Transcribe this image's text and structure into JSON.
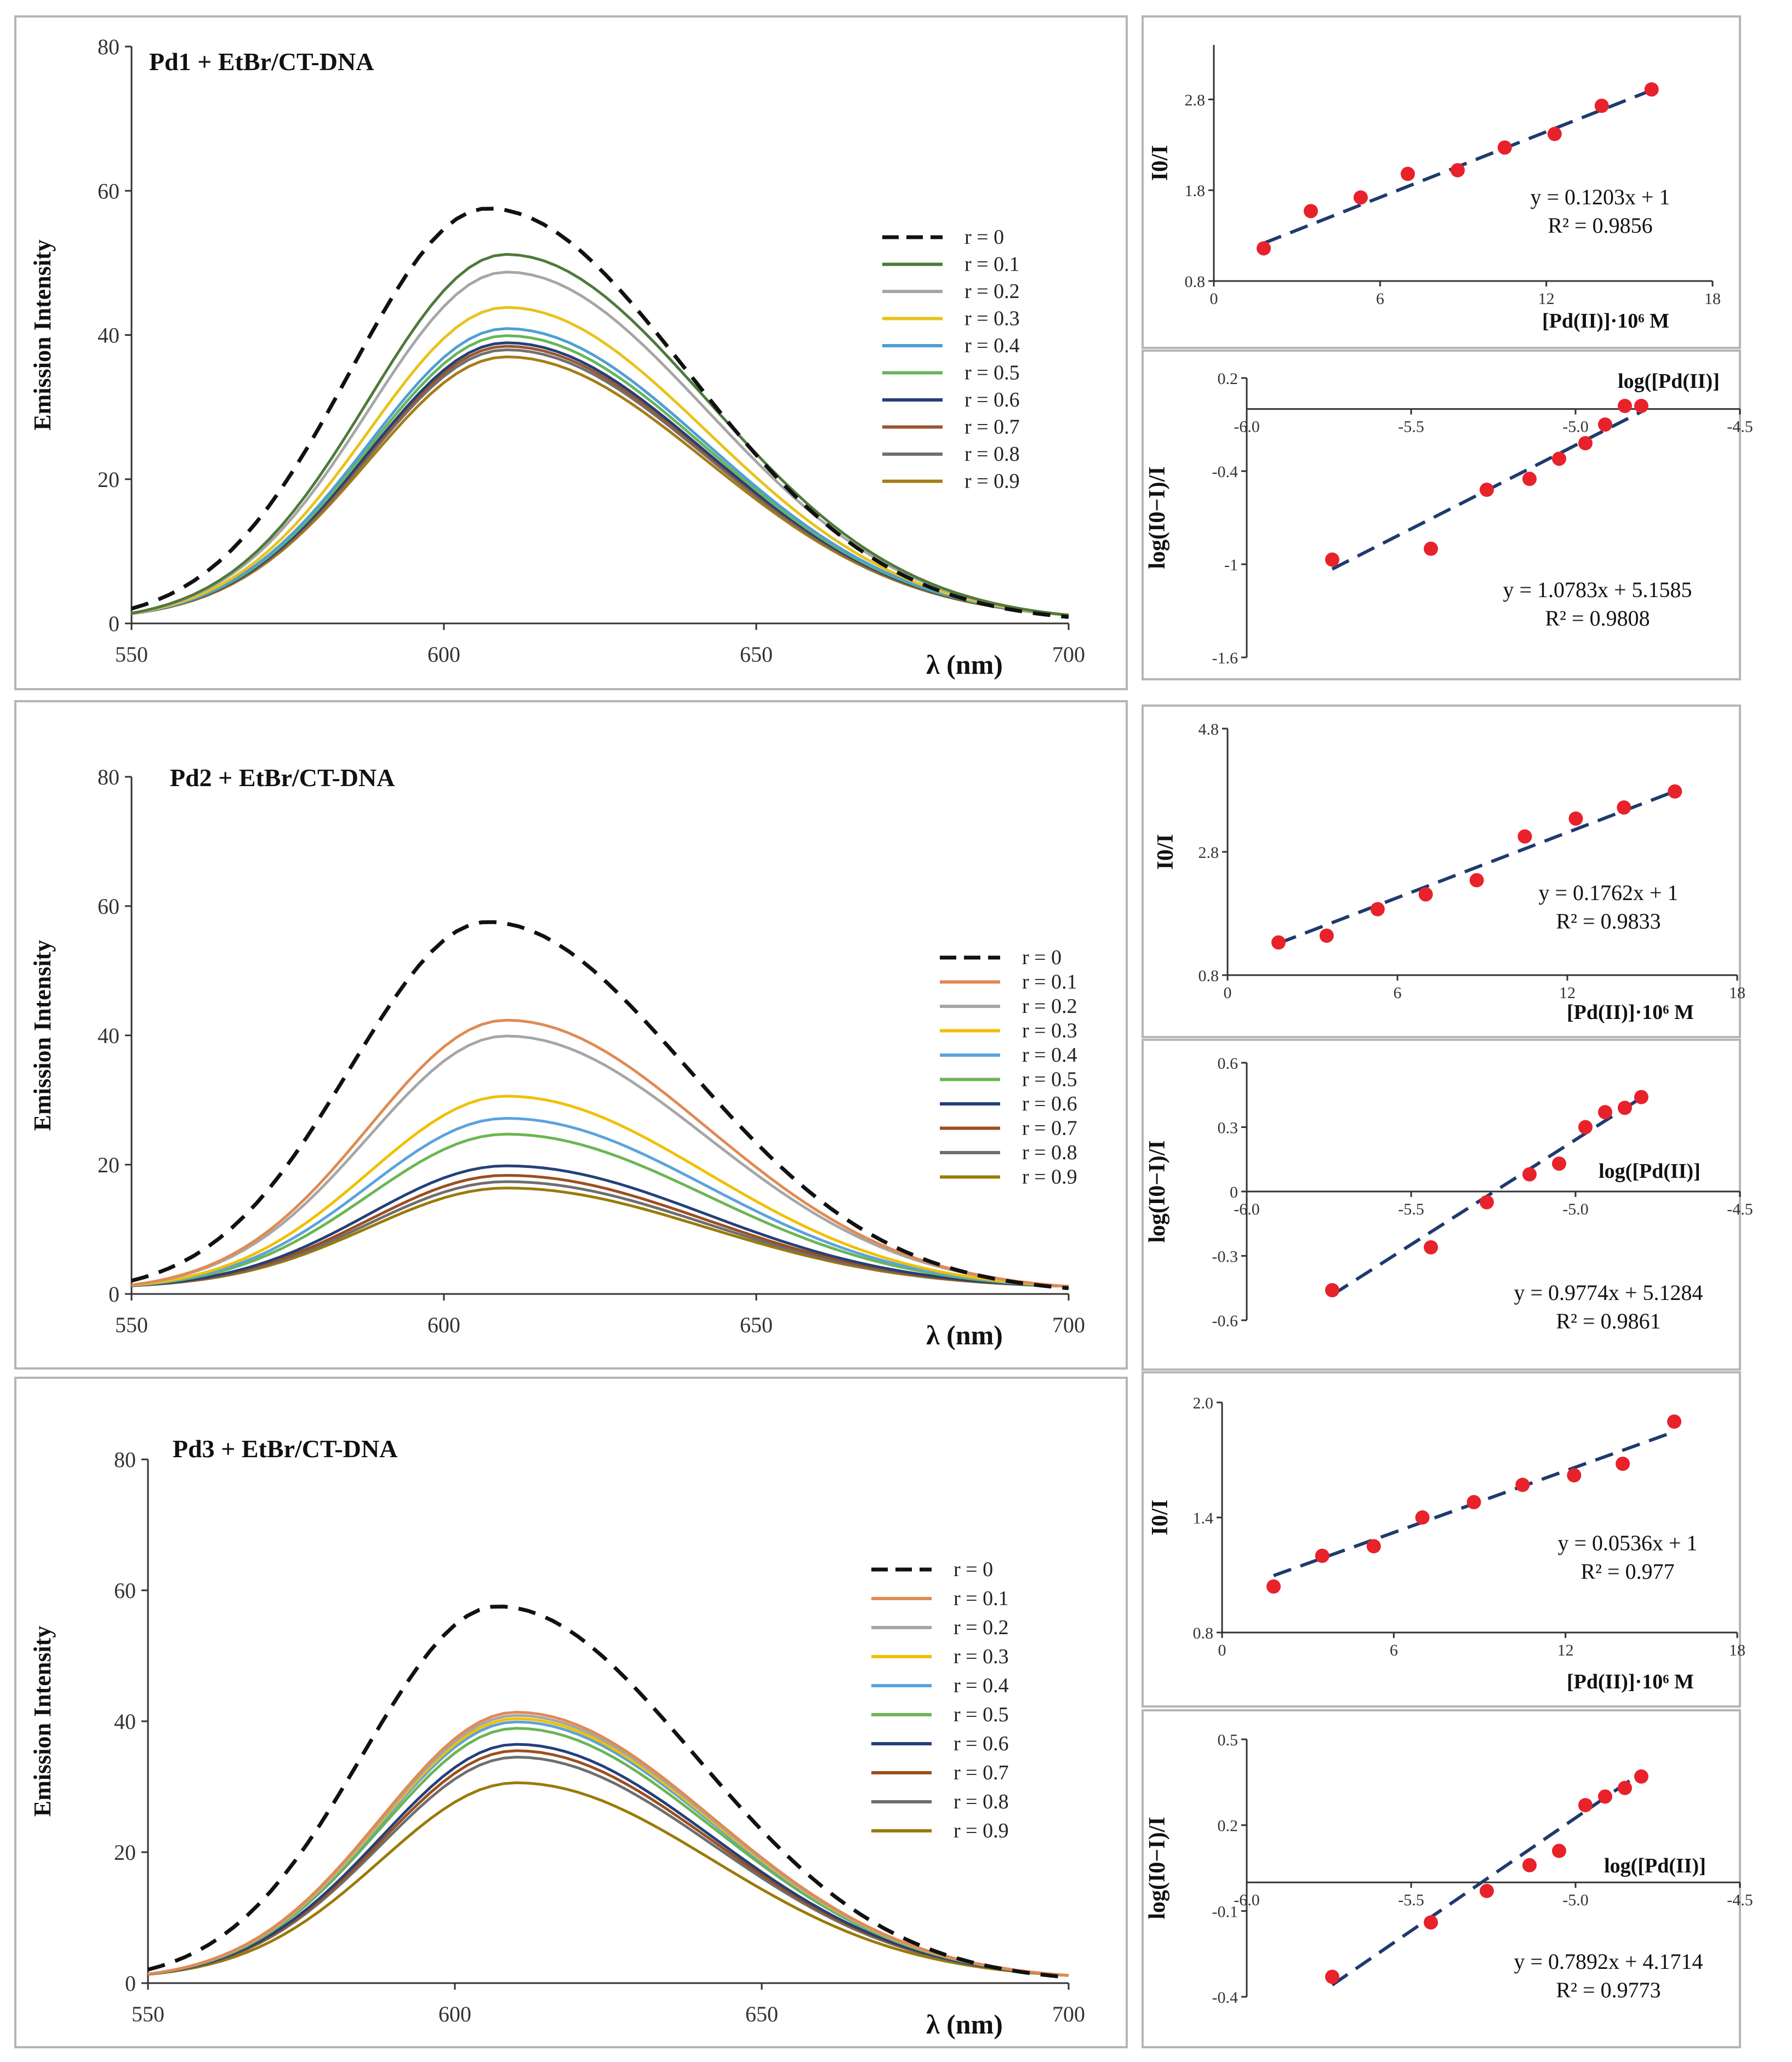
{
  "chart_data": [
    {
      "type": "line",
      "title": "Pd1 + EtBr/CT-DNA",
      "xlabel": "λ (nm)",
      "ylabel": "Emission Intensity",
      "xlim": [
        550,
        700
      ],
      "ylim": [
        0,
        80
      ],
      "xticks": [
        "550",
        "600",
        "650",
        "700"
      ],
      "yticks": [
        "0",
        "20",
        "40",
        "60",
        "80"
      ],
      "series": [
        {
          "name": "r = 0",
          "peak": 57.5,
          "dashed": true,
          "color": "#111111"
        },
        {
          "name": "r = 0.1",
          "peak": 51,
          "color": "#4e7a3a"
        },
        {
          "name": "r = 0.2",
          "peak": 48.5,
          "color": "#a6a6a6"
        },
        {
          "name": "r = 0.3",
          "peak": 43.5,
          "color": "#e9c21a"
        },
        {
          "name": "r = 0.4",
          "peak": 40.5,
          "color": "#4f9fd3"
        },
        {
          "name": "r = 0.5",
          "peak": 39.5,
          "color": "#69b45c"
        },
        {
          "name": "r = 0.6",
          "peak": 38.5,
          "color": "#24407a"
        },
        {
          "name": "r = 0.7",
          "peak": 38,
          "color": "#9c5530"
        },
        {
          "name": "r = 0.8",
          "peak": 37.5,
          "color": "#707070"
        },
        {
          "name": "r = 0.9",
          "peak": 36.5,
          "color": "#a67c17"
        }
      ]
    },
    {
      "type": "line",
      "title": "Pd2 + EtBr/CT-DNA",
      "xlabel": "λ (nm)",
      "ylabel": "Emission Intensity",
      "xlim": [
        550,
        700
      ],
      "ylim": [
        0,
        80
      ],
      "xticks": [
        "550",
        "600",
        "650",
        "700"
      ],
      "yticks": [
        "0",
        "20",
        "40",
        "60",
        "80"
      ],
      "series": [
        {
          "name": "r = 0",
          "peak": 57.5,
          "dashed": true,
          "color": "#111111"
        },
        {
          "name": "r = 0.1",
          "peak": 42,
          "color": "#e08a55"
        },
        {
          "name": "r = 0.2",
          "peak": 39.5,
          "color": "#a6a6a6"
        },
        {
          "name": "r = 0.3",
          "peak": 30,
          "color": "#f0c000"
        },
        {
          "name": "r = 0.4",
          "peak": 26.5,
          "color": "#5ba3db"
        },
        {
          "name": "r = 0.5",
          "peak": 24,
          "color": "#6cb553"
        },
        {
          "name": "r = 0.6",
          "peak": 19,
          "color": "#24407a"
        },
        {
          "name": "r = 0.7",
          "peak": 17.5,
          "color": "#9c4f1e"
        },
        {
          "name": "r = 0.8",
          "peak": 16.5,
          "color": "#6e6e6e"
        },
        {
          "name": "r = 0.9",
          "peak": 15.5,
          "color": "#9a7a0a"
        }
      ]
    },
    {
      "type": "line",
      "title": "Pd3 + EtBr/CT-DNA",
      "xlabel": "λ (nm)",
      "ylabel": "Emission Intensity",
      "xlim": [
        550,
        700
      ],
      "ylim": [
        0,
        80
      ],
      "xticks": [
        "550",
        "600",
        "650",
        "700"
      ],
      "yticks": [
        "0",
        "20",
        "40",
        "60",
        "80"
      ],
      "series": [
        {
          "name": "r = 0",
          "peak": 57.5,
          "dashed": true,
          "color": "#111111"
        },
        {
          "name": "r = 0.1",
          "peak": 41,
          "color": "#e08a55"
        },
        {
          "name": "r = 0.2",
          "peak": 40.5,
          "color": "#a6a6a6"
        },
        {
          "name": "r = 0.3",
          "peak": 40,
          "color": "#f0c000"
        },
        {
          "name": "r = 0.4",
          "peak": 39.5,
          "color": "#5ba3db"
        },
        {
          "name": "r = 0.5",
          "peak": 38.5,
          "color": "#6cb553"
        },
        {
          "name": "r = 0.6",
          "peak": 36,
          "color": "#24407a"
        },
        {
          "name": "r = 0.7",
          "peak": 35,
          "color": "#9c4f1e"
        },
        {
          "name": "r = 0.8",
          "peak": 34,
          "color": "#6e6e6e"
        },
        {
          "name": "r = 0.9",
          "peak": 30,
          "color": "#9a7a0a"
        }
      ]
    },
    {
      "type": "scatter",
      "ylabel": "I0/I",
      "xlabel": "[Pd(II)]·10⁶ M",
      "xlim": [
        0,
        18
      ],
      "ylim": [
        0.8,
        3.4
      ],
      "xticks": [
        0,
        6,
        12,
        18
      ],
      "yticks": [
        0.8,
        1.8,
        2.8
      ],
      "ytick_labels": [
        "0.8",
        "1.8",
        "2.8"
      ],
      "points": [
        [
          1.8,
          1.16
        ],
        [
          3.5,
          1.57
        ],
        [
          5.3,
          1.72
        ],
        [
          7.0,
          1.98
        ],
        [
          8.8,
          2.02
        ],
        [
          10.5,
          2.27
        ],
        [
          12.3,
          2.42
        ],
        [
          14.0,
          2.73
        ],
        [
          15.8,
          2.91
        ]
      ],
      "fit": {
        "slope": 0.1203,
        "intercept": 1
      },
      "equation": "y = 0.1203x + 1",
      "r2": "R² = 0.9856"
    },
    {
      "type": "scatter",
      "ylabel": "log(I0−I)/I",
      "xlabel": "log([Pd(II)]",
      "xlim": [
        -6.0,
        -4.5
      ],
      "ylim": [
        -1.6,
        0.2
      ],
      "xticks": [
        -6.0,
        -5.5,
        -5.0,
        -4.5
      ],
      "xtick_labels": [
        "-6.0",
        "-5.5",
        "-5.0",
        "-4.5"
      ],
      "yticks": [
        -1.6,
        -1,
        -0.4,
        0.2
      ],
      "ytick_labels": [
        "-1.6",
        "-1",
        "-0.4",
        "0.2"
      ],
      "points": [
        [
          -5.74,
          -0.97
        ],
        [
          -5.44,
          -0.9
        ],
        [
          -5.27,
          -0.52
        ],
        [
          -5.14,
          -0.45
        ],
        [
          -5.05,
          -0.32
        ],
        [
          -4.97,
          -0.22
        ],
        [
          -4.91,
          -0.1
        ],
        [
          -4.85,
          0.02
        ],
        [
          -4.8,
          0.02
        ]
      ],
      "fit": {
        "slope": 1.0783,
        "intercept": 5.1585
      },
      "equation": "y = 1.0783x + 5.1585",
      "r2": "R² = 0.9808"
    },
    {
      "type": "scatter",
      "ylabel": "I0/I",
      "xlabel": "[Pd(II)]·10⁶ M",
      "xlim": [
        0,
        18
      ],
      "ylim": [
        0.8,
        4.8
      ],
      "xticks": [
        0,
        6,
        12,
        18
      ],
      "yticks": [
        0.8,
        2.8,
        4.8
      ],
      "ytick_labels": [
        "0.8",
        "2.8",
        "4.8"
      ],
      "points": [
        [
          1.8,
          1.33
        ],
        [
          3.5,
          1.44
        ],
        [
          5.3,
          1.87
        ],
        [
          7.0,
          2.11
        ],
        [
          8.8,
          2.34
        ],
        [
          10.5,
          3.05
        ],
        [
          12.3,
          3.34
        ],
        [
          14.0,
          3.52
        ],
        [
          15.8,
          3.78
        ]
      ],
      "fit": {
        "slope": 0.1762,
        "intercept": 1
      },
      "equation": "y = 0.1762x + 1",
      "r2": "R² = 0.9833"
    },
    {
      "type": "scatter",
      "ylabel": "log(I0−I)/I",
      "xlabel": "log([Pd(II)]",
      "xlim": [
        -6.0,
        -4.5
      ],
      "ylim": [
        -0.6,
        0.6
      ],
      "xticks": [
        -6.0,
        -5.5,
        -5.0,
        -4.5
      ],
      "xtick_labels": [
        "-6.0",
        "-5.5",
        "-5.0",
        "-4.5"
      ],
      "yticks": [
        -0.6,
        -0.3,
        0,
        0.3,
        0.6
      ],
      "ytick_labels": [
        "-0.6",
        "-0.3",
        "0",
        "0.3",
        "0.6"
      ],
      "points": [
        [
          -5.74,
          -0.46
        ],
        [
          -5.44,
          -0.26
        ],
        [
          -5.27,
          -0.05
        ],
        [
          -5.14,
          0.08
        ],
        [
          -5.05,
          0.13
        ],
        [
          -4.97,
          0.3
        ],
        [
          -4.91,
          0.37
        ],
        [
          -4.85,
          0.39
        ],
        [
          -4.8,
          0.44
        ]
      ],
      "fit": {
        "slope": 0.9774,
        "intercept": 5.1284
      },
      "equation": "y = 0.9774x + 5.1284",
      "r2": "R² = 0.9861"
    },
    {
      "type": "scatter",
      "ylabel": "I0/I",
      "xlabel": "[Pd(II)]·10⁶ M",
      "xlim": [
        0,
        18
      ],
      "ylim": [
        0.8,
        2.0
      ],
      "xticks": [
        0,
        6,
        12,
        18
      ],
      "yticks": [
        0.8,
        1.4,
        2.0
      ],
      "ytick_labels": [
        "0.8",
        "1.4",
        "2.0"
      ],
      "points": [
        [
          1.8,
          1.04
        ],
        [
          3.5,
          1.2
        ],
        [
          5.3,
          1.25
        ],
        [
          7.0,
          1.4
        ],
        [
          8.8,
          1.48
        ],
        [
          10.5,
          1.57
        ],
        [
          12.3,
          1.62
        ],
        [
          14.0,
          1.68
        ],
        [
          15.8,
          1.9
        ]
      ],
      "fit": {
        "slope": 0.0536,
        "intercept": 1
      },
      "equation": "y = 0.0536x + 1",
      "r2": "R² = 0.977"
    },
    {
      "type": "scatter",
      "ylabel": "log(I0−I)/I",
      "xlabel": "log([Pd(II)]",
      "xlim": [
        -6.0,
        -4.5
      ],
      "ylim": [
        -0.4,
        0.5
      ],
      "xticks": [
        -6.0,
        -5.5,
        -5.0,
        -4.5
      ],
      "xtick_labels": [
        "-6.0",
        "-5.5",
        "-5.0",
        "-4.5"
      ],
      "yticks": [
        -0.4,
        -0.1,
        0.2,
        0.5
      ],
      "ytick_labels": [
        "-0.4",
        "-0.1",
        "0.2",
        "0.5"
      ],
      "points": [
        [
          -5.74,
          -0.33
        ],
        [
          -5.44,
          -0.14
        ],
        [
          -5.27,
          -0.03
        ],
        [
          -5.14,
          0.06
        ],
        [
          -5.05,
          0.11
        ],
        [
          -4.97,
          0.27
        ],
        [
          -4.91,
          0.3
        ],
        [
          -4.85,
          0.33
        ],
        [
          -4.8,
          0.37
        ]
      ],
      "fit": {
        "slope": 0.7892,
        "intercept": 4.1714
      },
      "equation": "y = 0.7892x + 4.1714",
      "r2": "R² = 0.9773"
    }
  ]
}
